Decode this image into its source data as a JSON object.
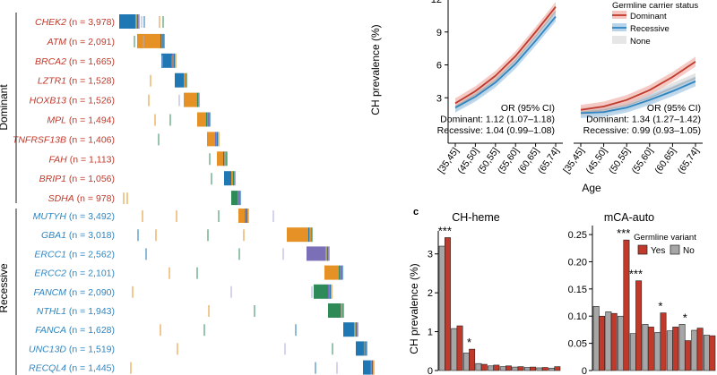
{
  "colors": {
    "dominant": "#c0392b",
    "recessive": "#2e86c1",
    "none": "#d9d9d9",
    "yes_bar": "#c0392b",
    "no_bar": "#a6a6a6",
    "blue_block": "#1f77b4",
    "orange_block": "#e69125",
    "purple_block": "#7b6fb7",
    "green_block": "#2e8b57"
  },
  "panel_a": {
    "group_labels": [
      "Dominant",
      "Recessive"
    ],
    "genes": [
      {
        "gene": "CHEK2",
        "n": "(n = 3,978)",
        "group": "dominant",
        "block_color": "#1f77b4"
      },
      {
        "gene": "ATM",
        "n": "(n = 2,091)",
        "group": "dominant",
        "block_color": "#e69125"
      },
      {
        "gene": "BRCA2",
        "n": "(n = 1,665)",
        "group": "dominant",
        "block_color": "#1f77b4"
      },
      {
        "gene": "LZTR1",
        "n": "(n = 1,528)",
        "group": "dominant",
        "block_color": "#1f77b4"
      },
      {
        "gene": "HOXB13",
        "n": "(n = 1,526)",
        "group": "dominant",
        "block_color": "#e69125"
      },
      {
        "gene": "MPL",
        "n": "(n = 1,494)",
        "group": "dominant",
        "block_color": "#e69125"
      },
      {
        "gene": "TNFRSF13B",
        "n": "(n = 1,406)",
        "group": "dominant",
        "block_color": "#e69125"
      },
      {
        "gene": "FAH",
        "n": "(n = 1,113)",
        "group": "dominant",
        "block_color": "#e69125"
      },
      {
        "gene": "BRIP1",
        "n": "(n = 1,056)",
        "group": "dominant",
        "block_color": "#1f77b4"
      },
      {
        "gene": "SDHA",
        "n": "(n = 978)",
        "group": "dominant",
        "block_color": "#2e8b57"
      },
      {
        "gene": "MUTYH",
        "n": "(n = 3,492)",
        "group": "recessive",
        "block_color": "#e69125"
      },
      {
        "gene": "GBA1",
        "n": "(n = 3,018)",
        "group": "recessive",
        "block_color": "#e69125"
      },
      {
        "gene": "ERCC1",
        "n": "(n = 2,562)",
        "group": "recessive",
        "block_color": "#7b6fb7"
      },
      {
        "gene": "ERCC2",
        "n": "(n = 2,101)",
        "group": "recessive",
        "block_color": "#e69125"
      },
      {
        "gene": "FANCM",
        "n": "(n = 2,090)",
        "group": "recessive",
        "block_color": "#2e8b57"
      },
      {
        "gene": "NTHL1",
        "n": "(n = 1,943)",
        "group": "recessive",
        "block_color": "#2e8b57"
      },
      {
        "gene": "FANCA",
        "n": "(n = 1,628)",
        "group": "recessive",
        "block_color": "#1f77b4"
      },
      {
        "gene": "UNC13D",
        "n": "(n = 1,519)",
        "group": "recessive",
        "block_color": "#1f77b4"
      },
      {
        "gene": "RECQL4",
        "n": "(n = 1,445)",
        "group": "recessive",
        "block_color": "#1f77b4"
      }
    ]
  },
  "chart_data": [
    {
      "type": "line",
      "panel": "b",
      "ylabel": "CH prevalence (%)",
      "xlabel": "Age",
      "categories": [
        "[35,45]",
        "(45,50]",
        "(50,55]",
        "(55,60]",
        "(60,65]",
        "(65,74]"
      ],
      "yticks": [
        "3",
        "6",
        "9",
        "12"
      ],
      "ylim": [
        0,
        12
      ],
      "legend": {
        "title": "Germline carrier status",
        "entries": [
          "Dominant",
          "Recessive",
          "None"
        ],
        "position": "top-right"
      },
      "subplots": [
        {
          "ylim": [
            0,
            12
          ],
          "series": [
            {
              "name": "Dominant",
              "values": [
                2.5,
                3.6,
                5.0,
                6.8,
                9.0,
                11.3
              ]
            },
            {
              "name": "Recessive",
              "values": [
                2.1,
                3.1,
                4.4,
                6.1,
                8.2,
                10.4
              ]
            },
            {
              "name": "None",
              "values": [
                2.2,
                3.3,
                4.6,
                6.4,
                8.6,
                10.9
              ]
            }
          ],
          "annotation": [
            "OR (95% CI)",
            "Dominant: 1.12 (1.07–1.18)",
            "Recessive: 1.04 (0.99–1.08)"
          ]
        },
        {
          "ylim": [
            0,
            12
          ],
          "series": [
            {
              "name": "Dominant",
              "values": [
                1.9,
                2.2,
                2.8,
                3.7,
                4.9,
                6.3
              ]
            },
            {
              "name": "Recessive",
              "values": [
                1.6,
                1.7,
                2.1,
                2.8,
                3.6,
                4.5
              ]
            },
            {
              "name": "None",
              "values": [
                1.7,
                1.9,
                2.3,
                3.0,
                3.9,
                4.8
              ]
            }
          ],
          "annotation": [
            "OR (95% CI)",
            "Dominant: 1.34 (1.27–1.42)",
            "Recessive: 0.99 (0.93–1.05)"
          ]
        }
      ]
    },
    {
      "type": "bar",
      "panel": "c",
      "panel_label": "c",
      "title": "CH-heme",
      "ylabel": "CH prevalence (%)",
      "yticks": [
        "0",
        "1",
        "2",
        "3"
      ],
      "ylim": [
        0,
        3.5
      ],
      "series": [
        {
          "name": "No",
          "values": [
            3.2,
            1.08,
            0.45,
            0.18,
            0.12,
            0.1,
            0.09,
            0.08,
            0.07,
            0.06
          ]
        },
        {
          "name": "Yes",
          "values": [
            3.42,
            1.15,
            0.55,
            0.16,
            0.14,
            0.12,
            0.1,
            0.09,
            0.08,
            0.1
          ]
        }
      ],
      "annotations": [
        {
          "text": "***",
          "pair": 0
        },
        {
          "text": "*",
          "pair": 2
        }
      ]
    },
    {
      "type": "bar",
      "panel": "c",
      "title": "mCA-auto",
      "yticks": [
        "0",
        "0.05",
        "0.10",
        "0.15",
        "0.20",
        "0.25"
      ],
      "ylim": [
        0,
        0.26
      ],
      "legend": {
        "title": "Germline variant",
        "entries": [
          "Yes",
          "No"
        ],
        "position": "top-right"
      },
      "series": [
        {
          "name": "No",
          "values": [
            0.118,
            0.108,
            0.1,
            0.068,
            0.085,
            0.07,
            0.073,
            0.085,
            0.074,
            0.065
          ]
        },
        {
          "name": "Yes",
          "values": [
            0.1,
            0.105,
            0.24,
            0.165,
            0.08,
            0.106,
            0.08,
            0.055,
            0.078,
            0.064
          ]
        }
      ],
      "annotations": [
        {
          "text": "***",
          "pair": 2
        },
        {
          "text": "***",
          "pair": 3
        },
        {
          "text": "*",
          "pair": 5
        },
        {
          "text": "*",
          "pair": 7
        }
      ]
    }
  ]
}
